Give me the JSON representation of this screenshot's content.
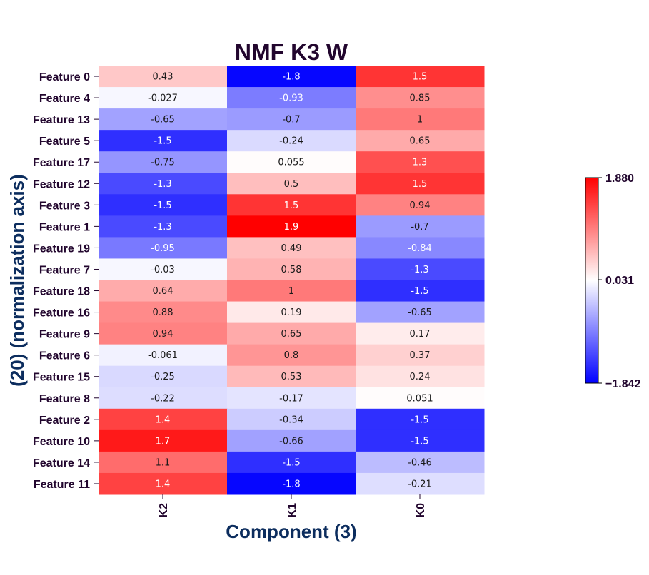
{
  "chart_data": {
    "type": "heatmap",
    "title": "NMF K3 W",
    "xlabel": "Component (3)",
    "ylabel": "(20) (normalization axis)",
    "columns": [
      "K2",
      "K1",
      "K0"
    ],
    "rows": [
      "Feature 0",
      "Feature 4",
      "Feature 13",
      "Feature 5",
      "Feature 17",
      "Feature 12",
      "Feature 3",
      "Feature 1",
      "Feature 19",
      "Feature 7",
      "Feature 18",
      "Feature 16",
      "Feature 9",
      "Feature 6",
      "Feature 15",
      "Feature 8",
      "Feature 2",
      "Feature 10",
      "Feature 14",
      "Feature 11"
    ],
    "values": [
      [
        0.43,
        -1.8,
        1.5
      ],
      [
        -0.027,
        -0.93,
        0.85
      ],
      [
        -0.65,
        -0.7,
        1
      ],
      [
        -1.5,
        -0.24,
        0.65
      ],
      [
        -0.75,
        0.055,
        1.3
      ],
      [
        -1.3,
        0.5,
        1.5
      ],
      [
        -1.5,
        1.5,
        0.94
      ],
      [
        -1.3,
        1.9,
        -0.7
      ],
      [
        -0.95,
        0.49,
        -0.84
      ],
      [
        -0.03,
        0.58,
        -1.3
      ],
      [
        0.64,
        1,
        -1.5
      ],
      [
        0.88,
        0.19,
        -0.65
      ],
      [
        0.94,
        0.65,
        0.17
      ],
      [
        -0.061,
        0.8,
        0.37
      ],
      [
        -0.25,
        0.53,
        0.24
      ],
      [
        -0.22,
        -0.17,
        0.051
      ],
      [
        1.4,
        -0.34,
        -1.5
      ],
      [
        1.7,
        -0.66,
        -1.5
      ],
      [
        1.1,
        -1.5,
        -0.46
      ],
      [
        1.4,
        -1.8,
        -0.21
      ]
    ],
    "colorbar": {
      "min": -1.842,
      "center": 0.031,
      "max": 1.88,
      "tick_labels": [
        "1.880",
        "0.031",
        "−1.842"
      ],
      "colormap": "bwr",
      "colors": {
        "low": "#0000ff",
        "mid": "#ffffff",
        "high": "#ff0000"
      }
    }
  }
}
